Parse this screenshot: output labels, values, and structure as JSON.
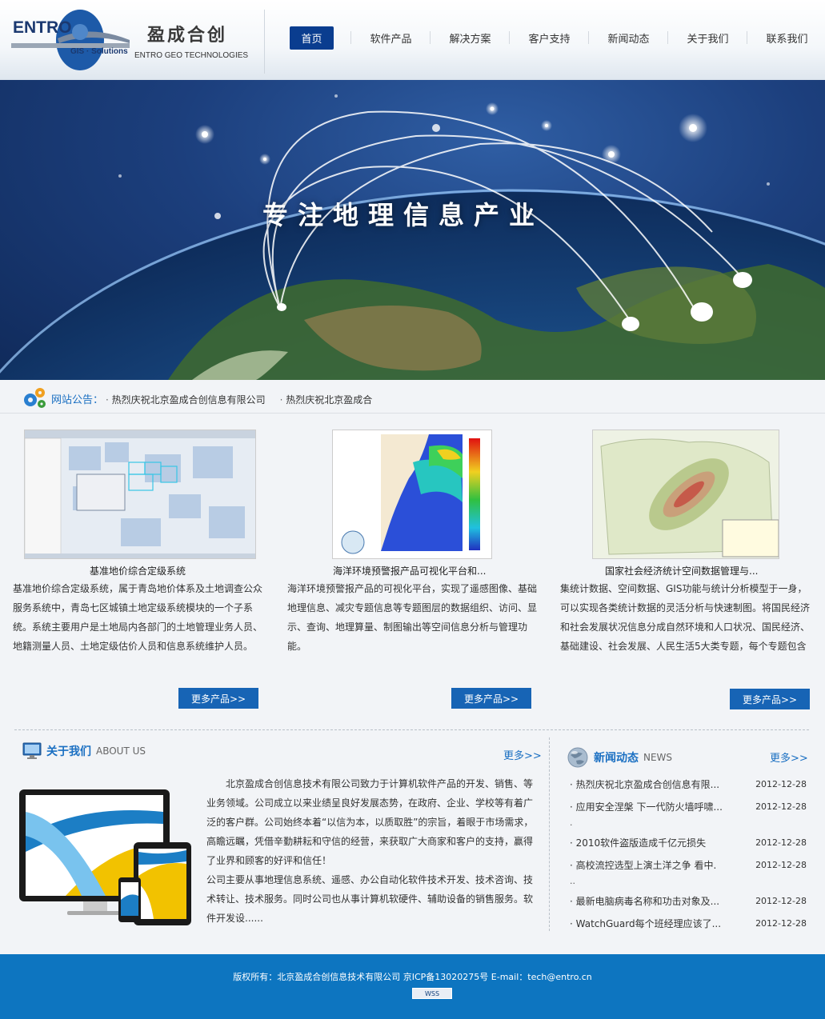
{
  "brand": {
    "logo_text": "ENTRO",
    "logo_sub": "GIS · Solutions",
    "name_cn": "盈成合创",
    "name_en": "ENTRO GEO TECHNOLOGIES"
  },
  "nav": {
    "items": [
      {
        "label": "首页",
        "active": true
      },
      {
        "label": "软件产品"
      },
      {
        "label": "解决方案"
      },
      {
        "label": "客户支持"
      },
      {
        "label": "新闻动态"
      },
      {
        "label": "关于我们"
      },
      {
        "label": "联系我们"
      }
    ]
  },
  "banner": {
    "title": "专注地理信息产业"
  },
  "notice": {
    "label": "网站公告：",
    "items": [
      "热烈庆祝北京盈成合创信息有限公司",
      "热烈庆祝北京盈成合"
    ]
  },
  "products": [
    {
      "title": "基准地价综合定级系统",
      "desc": "基准地价综合定级系统，属于青岛地价体系及土地调查公众服务系统中，青岛七区城镇土地定级系统模块的一个子系统。系统主要用户是土地局内各部门的土地管理业务人员、地籍测量人员、土地定级估价人员和信息系统维护人员。",
      "more": "更多产品>>"
    },
    {
      "title": "海洋环境预警报产品可视化平台和...",
      "desc": "海洋环境预警报产品的可视化平台，实现了遥感图像、基础地理信息、减灾专题信息等专题图层的数据组织、访问、显示、查询、地理算量、制图输出等空间信息分析与管理功能。",
      "more": "更多产品>>"
    },
    {
      "title": "国家社会经济统计空间数据管理与...",
      "desc": "集统计数据、空间数据、GIS功能与统计分析模型于一身，可以实现各类统计数据的灵活分析与快速制图。将国民经济和社会发展状况信息分成自然环境和人口状况、国民经济、基础建设、社会发展、人民生活5大类专题，每个专题包含数十幅生动形象、内容丰富的电子地图。",
      "more": "更多产品>>"
    }
  ],
  "about": {
    "title_cn": "关于我们",
    "title_en": "ABOUT US",
    "more": "更多>>",
    "para1": "北京盈成合创信息技术有限公司致力于计算机软件产品的开发、销售、等业务领域。公司成立以来业绩呈良好发展态势，在政府、企业、学校等有着广泛的客户群。公司始终本着“以信为本，以质取胜”的宗旨，着眼于市场需求，高瞻远瞩，凭借辛勤耕耘和守信的经营，来获取广大商家和客户的支持，赢得了业界和顾客的好评和信任！",
    "para2": "公司主要从事地理信息系统、遥感、办公自动化软件技术开发、技术咨询、技术转让、技术服务。同时公司也从事计算机软硬件、辅助设备的销售服务。软件开发设......"
  },
  "news": {
    "title_cn": "新闻动态",
    "title_en": "NEWS",
    "more": "更多>>",
    "items": [
      {
        "title": "热烈庆祝北京盈成合创信息有限...",
        "date": "2012-12-28",
        "cont": ""
      },
      {
        "title": "应用安全涅槃 下一代防火墙呼啸...",
        "date": "2012-12-28",
        "cont": "."
      },
      {
        "title": "2010软件盗版造成千亿元损失",
        "date": "2012-12-28",
        "cont": ""
      },
      {
        "title": "高校流控选型上演土洋之争  看中.",
        "date": "2012-12-28",
        "cont": ".."
      },
      {
        "title": "最新电脑病毒名称和功击对象及...",
        "date": "2012-12-28",
        "cont": ""
      },
      {
        "title": "WatchGuard每个班经理应该了...",
        "date": "2012-12-28",
        "cont": ""
      }
    ]
  },
  "footer": {
    "text": "版权所有：北京盈成合创信息技术有限公司 京ICP备13020275号 E-mail：tech@entro.cn",
    "badge": "WSS"
  },
  "colors": {
    "primary": "#0d75c0",
    "nav_active": "#0a3d8f",
    "link": "#1a6fc2"
  }
}
